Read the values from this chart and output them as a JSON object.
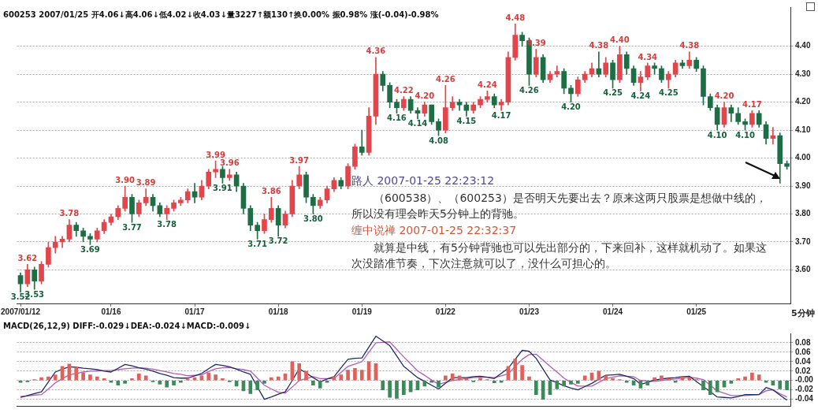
{
  "chart_data": [
    {
      "type": "candlestick",
      "title": "600253 2007/01/25 开4.06↓高4.06↓低4.02↓收4.03↓量3227↑额130↑换0.00% 振0.98% 涨(-0.04)-0.98%",
      "categories": [
        "2007/01/12",
        null,
        null,
        null,
        null,
        null,
        null,
        null,
        null,
        null,
        null,
        null,
        null,
        "01/16",
        null,
        null,
        null,
        null,
        null,
        null,
        null,
        null,
        null,
        null,
        null,
        "01/17",
        null,
        null,
        null,
        null,
        null,
        null,
        null,
        null,
        null,
        null,
        null,
        "01/18",
        null,
        null,
        null,
        null,
        null,
        null,
        null,
        null,
        null,
        null,
        null,
        "01/19",
        null,
        null,
        null,
        null,
        null,
        null,
        null,
        null,
        null,
        null,
        null,
        "01/22",
        null,
        null,
        null,
        null,
        null,
        null,
        null,
        null,
        null,
        null,
        null,
        "01/23",
        null,
        null,
        null,
        null,
        null,
        null,
        null,
        null,
        null,
        null,
        null,
        "01/24",
        null,
        null,
        null,
        null,
        null,
        null,
        null,
        null,
        null,
        null,
        null,
        "01/25",
        null,
        null,
        null,
        null,
        null,
        null,
        null,
        null,
        null,
        null,
        null,
        null,
        null
      ],
      "ohlc": [
        [
          3.58,
          3.59,
          3.52,
          3.55
        ],
        [
          3.55,
          3.62,
          3.54,
          3.6
        ],
        [
          3.6,
          3.61,
          3.53,
          3.56
        ],
        [
          3.56,
          3.63,
          3.55,
          3.62
        ],
        [
          3.62,
          3.7,
          3.61,
          3.68
        ],
        [
          3.68,
          3.72,
          3.66,
          3.7
        ],
        [
          3.7,
          3.72,
          3.68,
          3.71
        ],
        [
          3.71,
          3.78,
          3.7,
          3.76
        ],
        [
          3.76,
          3.77,
          3.72,
          3.74
        ],
        [
          3.74,
          3.75,
          3.7,
          3.72
        ],
        [
          3.72,
          3.73,
          3.69,
          3.71
        ],
        [
          3.71,
          3.75,
          3.7,
          3.74
        ],
        [
          3.74,
          3.78,
          3.73,
          3.77
        ],
        [
          3.77,
          3.8,
          3.76,
          3.79
        ],
        [
          3.79,
          3.83,
          3.78,
          3.82
        ],
        [
          3.82,
          3.9,
          3.81,
          3.86
        ],
        [
          3.86,
          3.87,
          3.77,
          3.8
        ],
        [
          3.8,
          3.85,
          3.79,
          3.84
        ],
        [
          3.84,
          3.89,
          3.83,
          3.86
        ],
        [
          3.86,
          3.87,
          3.81,
          3.83
        ],
        [
          3.83,
          3.84,
          3.79,
          3.8
        ],
        [
          3.8,
          3.83,
          3.78,
          3.82
        ],
        [
          3.82,
          3.85,
          3.81,
          3.84
        ],
        [
          3.84,
          3.86,
          3.83,
          3.85
        ],
        [
          3.85,
          3.89,
          3.84,
          3.88
        ],
        [
          3.88,
          3.91,
          3.84,
          3.86
        ],
        [
          3.86,
          3.92,
          3.85,
          3.9
        ],
        [
          3.9,
          3.96,
          3.89,
          3.95
        ],
        [
          3.95,
          3.99,
          3.93,
          3.96
        ],
        [
          3.96,
          3.97,
          3.91,
          3.93
        ],
        [
          3.93,
          3.96,
          3.92,
          3.94
        ],
        [
          3.94,
          3.95,
          3.88,
          3.9
        ],
        [
          3.9,
          3.91,
          3.8,
          3.82
        ],
        [
          3.82,
          3.83,
          3.74,
          3.76
        ],
        [
          3.76,
          3.77,
          3.71,
          3.74
        ],
        [
          3.74,
          3.8,
          3.73,
          3.78
        ],
        [
          3.78,
          3.86,
          3.77,
          3.82
        ],
        [
          3.82,
          3.83,
          3.72,
          3.76
        ],
        [
          3.76,
          3.81,
          3.75,
          3.8
        ],
        [
          3.8,
          3.92,
          3.79,
          3.9
        ],
        [
          3.9,
          3.97,
          3.89,
          3.94
        ],
        [
          3.94,
          3.95,
          3.84,
          3.86
        ],
        [
          3.86,
          3.87,
          3.8,
          3.83
        ],
        [
          3.83,
          3.86,
          3.82,
          3.85
        ],
        [
          3.85,
          3.9,
          3.84,
          3.89
        ],
        [
          3.89,
          3.93,
          3.88,
          3.92
        ],
        [
          3.92,
          3.93,
          3.89,
          3.9
        ],
        [
          3.9,
          3.98,
          3.89,
          3.97
        ],
        [
          3.97,
          4.05,
          3.96,
          4.04
        ],
        [
          4.04,
          4.1,
          4.01,
          4.02
        ],
        [
          4.02,
          4.18,
          4.01,
          4.15
        ],
        [
          4.15,
          4.36,
          4.12,
          4.3
        ],
        [
          4.3,
          4.31,
          4.24,
          4.26
        ],
        [
          4.26,
          4.27,
          4.18,
          4.2
        ],
        [
          4.2,
          4.21,
          4.16,
          4.18
        ],
        [
          4.18,
          4.22,
          4.17,
          4.21
        ],
        [
          4.21,
          4.22,
          4.16,
          4.17
        ],
        [
          4.17,
          4.18,
          4.14,
          4.16
        ],
        [
          4.16,
          4.2,
          4.15,
          4.19
        ],
        [
          4.19,
          4.19,
          4.12,
          4.13
        ],
        [
          4.13,
          4.14,
          4.08,
          4.1
        ],
        [
          4.1,
          4.26,
          4.09,
          4.18
        ],
        [
          4.18,
          4.22,
          4.17,
          4.2
        ],
        [
          4.2,
          4.21,
          4.17,
          4.19
        ],
        [
          4.19,
          4.2,
          4.15,
          4.17
        ],
        [
          4.17,
          4.2,
          4.16,
          4.19
        ],
        [
          4.19,
          4.22,
          4.18,
          4.21
        ],
        [
          4.21,
          4.24,
          4.2,
          4.22
        ],
        [
          4.22,
          4.23,
          4.18,
          4.19
        ],
        [
          4.19,
          4.21,
          4.17,
          4.2
        ],
        [
          4.2,
          4.38,
          4.19,
          4.36
        ],
        [
          4.36,
          4.48,
          4.35,
          4.44
        ],
        [
          4.44,
          4.45,
          4.4,
          4.42
        ],
        [
          4.42,
          4.43,
          4.26,
          4.3
        ],
        [
          4.3,
          4.39,
          4.29,
          4.36
        ],
        [
          4.36,
          4.37,
          4.27,
          4.28
        ],
        [
          4.28,
          4.31,
          4.27,
          4.3
        ],
        [
          4.3,
          4.33,
          4.29,
          4.31
        ],
        [
          4.31,
          4.32,
          4.23,
          4.25
        ],
        [
          4.25,
          4.26,
          4.2,
          4.23
        ],
        [
          4.23,
          4.29,
          4.22,
          4.28
        ],
        [
          4.28,
          4.31,
          4.27,
          4.3
        ],
        [
          4.3,
          4.34,
          4.29,
          4.32
        ],
        [
          4.32,
          4.38,
          4.29,
          4.3
        ],
        [
          4.3,
          4.36,
          4.29,
          4.34
        ],
        [
          4.34,
          4.35,
          4.25,
          4.28
        ],
        [
          4.28,
          4.4,
          4.27,
          4.37
        ],
        [
          4.37,
          4.38,
          4.3,
          4.32
        ],
        [
          4.32,
          4.33,
          4.26,
          4.27
        ],
        [
          4.27,
          4.31,
          4.24,
          4.29
        ],
        [
          4.29,
          4.34,
          4.28,
          4.33
        ],
        [
          4.33,
          4.34,
          4.3,
          4.32
        ],
        [
          4.32,
          4.33,
          4.27,
          4.28
        ],
        [
          4.28,
          4.31,
          4.25,
          4.3
        ],
        [
          4.3,
          4.35,
          4.29,
          4.34
        ],
        [
          4.34,
          4.35,
          4.32,
          4.33
        ],
        [
          4.33,
          4.38,
          4.32,
          4.35
        ],
        [
          4.35,
          4.36,
          4.31,
          4.32
        ],
        [
          4.32,
          4.33,
          4.19,
          4.22
        ],
        [
          4.22,
          4.23,
          4.17,
          4.18
        ],
        [
          4.18,
          4.19,
          4.1,
          4.12
        ],
        [
          4.12,
          4.2,
          4.11,
          4.18
        ],
        [
          4.18,
          4.19,
          4.13,
          4.16
        ],
        [
          4.16,
          4.18,
          4.12,
          4.13
        ],
        [
          4.13,
          4.14,
          4.1,
          4.12
        ],
        [
          4.12,
          4.17,
          4.11,
          4.16
        ],
        [
          4.16,
          4.17,
          4.11,
          4.12
        ],
        [
          4.12,
          4.13,
          4.05,
          4.07
        ],
        [
          4.07,
          4.11,
          4.05,
          4.08
        ],
        [
          4.08,
          4.09,
          3.91,
          3.98
        ],
        [
          3.98,
          3.99,
          3.96,
          3.97
        ]
      ],
      "colors": [
        "#1d6e45",
        "#e0464b",
        "#1d6e45",
        "#e0464b",
        "#e0464b",
        "#e0464b",
        "#e0464b",
        "#e0464b",
        "#1d6e45",
        "#1d6e45",
        "#1d6e45",
        "#e0464b",
        "#e0464b",
        "#e0464b",
        "#e0464b",
        "#e0464b",
        "#1d6e45",
        "#e0464b",
        "#e0464b",
        "#1d6e45",
        "#1d6e45",
        "#e0464b",
        "#e0464b",
        "#e0464b",
        "#e0464b",
        "#1d6e45",
        "#e0464b",
        "#e0464b",
        "#e0464b",
        "#1d6e45",
        "#e0464b",
        "#1d6e45",
        "#1d6e45",
        "#1d6e45",
        "#1d6e45",
        "#e0464b",
        "#e0464b",
        "#1d6e45",
        "#e0464b",
        "#e0464b",
        "#e0464b",
        "#1d6e45",
        "#1d6e45",
        "#e0464b",
        "#e0464b",
        "#e0464b",
        "#1d6e45",
        "#e0464b",
        "#e0464b",
        "#1d6e45",
        "#e0464b",
        "#e0464b",
        "#1d6e45",
        "#1d6e45",
        "#1d6e45",
        "#e0464b",
        "#1d6e45",
        "#1d6e45",
        "#e0464b",
        "#1d6e45",
        "#1d6e45",
        "#e0464b",
        "#e0464b",
        "#1d6e45",
        "#1d6e45",
        "#e0464b",
        "#e0464b",
        "#e0464b",
        "#1d6e45",
        "#e0464b",
        "#e0464b",
        "#e0464b",
        "#1d6e45",
        "#1d6e45",
        "#e0464b",
        "#1d6e45",
        "#e0464b",
        "#e0464b",
        "#1d6e45",
        "#1d6e45",
        "#e0464b",
        "#e0464b",
        "#e0464b",
        "#1d6e45",
        "#e0464b",
        "#1d6e45",
        "#e0464b",
        "#1d6e45",
        "#1d6e45",
        "#e0464b",
        "#e0464b",
        "#1d6e45",
        "#1d6e45",
        "#e0464b",
        "#e0464b",
        "#1d6e45",
        "#e0464b",
        "#1d6e45",
        "#1d6e45",
        "#1d6e45",
        "#1d6e45",
        "#e0464b",
        "#1d6e45",
        "#1d6e45",
        "#1d6e45",
        "#e0464b",
        "#1d6e45",
        "#1d6e45",
        "#e0464b",
        "#1d6e45",
        "#1d6e45"
      ],
      "ylim": [
        3.48,
        4.54
      ],
      "yticks": [
        {
          "value": 3.6,
          "label": "3.60"
        },
        {
          "value": 3.7,
          "label": "3.70"
        },
        {
          "value": 3.8,
          "label": "3.80"
        },
        {
          "value": 3.9,
          "label": "3.90"
        },
        {
          "value": 4.0,
          "label": "4.00"
        },
        {
          "value": 4.1,
          "label": "4.10"
        },
        {
          "value": 4.2,
          "label": "4.20"
        },
        {
          "value": 4.3,
          "label": "4.30"
        },
        {
          "value": 4.4,
          "label": "4.40"
        }
      ],
      "grid": "y",
      "annotations": [
        "路人 2007-01-25 22:23:12",
        "（600538）、（600253）是否明天先要出去？原来这两只股票是想做中线的，所以没有理会昨天5分钟上的背驰。",
        "缠中说禅 2007-01-25 22:32:37",
        "就算是中线，有5分钟背驰也可以先出部分的，下来回补，这样就机动了。如果这次没踏准节奏，下次注意就可以了，没什么可担心的。",
        "5分钟",
        {
          "text": "3.52",
          "y": 3.52
        },
        {
          "text": "3.62",
          "y": 3.62
        },
        {
          "text": "3.53",
          "y": 3.53
        },
        {
          "text": "3.78",
          "y": 3.78
        },
        {
          "text": "3.69",
          "y": 3.69
        },
        {
          "text": "3.90",
          "y": 3.9
        },
        {
          "text": "3.77",
          "y": 3.77
        },
        {
          "text": "3.89",
          "y": 3.89
        },
        {
          "text": "3.78",
          "y": 3.78
        },
        {
          "text": "3.99",
          "y": 3.99
        },
        {
          "text": "3.91",
          "y": 3.91
        },
        {
          "text": "3.96",
          "y": 3.96
        },
        {
          "text": "3.71",
          "y": 3.71
        },
        {
          "text": "3.86",
          "y": 3.86
        },
        {
          "text": "3.72",
          "y": 3.72
        },
        {
          "text": "3.97",
          "y": 3.97
        },
        {
          "text": "3.80",
          "y": 3.8
        },
        {
          "text": "4.36",
          "y": 4.36
        },
        {
          "text": "4.16",
          "y": 4.16
        },
        {
          "text": "4.22",
          "y": 4.22
        },
        {
          "text": "4.14",
          "y": 4.14
        },
        {
          "text": "4.20",
          "y": 4.2
        },
        {
          "text": "4.08",
          "y": 4.08
        },
        {
          "text": "4.26",
          "y": 4.26
        },
        {
          "text": "4.15",
          "y": 4.15
        },
        {
          "text": "4.24",
          "y": 4.24
        },
        {
          "text": "4.17",
          "y": 4.17
        },
        {
          "text": "4.48",
          "y": 4.48
        },
        {
          "text": "4.26",
          "y": 4.26
        },
        {
          "text": "4.39",
          "y": 4.39
        },
        {
          "text": "4.20",
          "y": 4.2
        },
        {
          "text": "4.38",
          "y": 4.38
        },
        {
          "text": "4.25",
          "y": 4.25
        },
        {
          "text": "4.40",
          "y": 4.4
        },
        {
          "text": "4.24",
          "y": 4.24
        },
        {
          "text": "4.34",
          "y": 4.34
        },
        {
          "text": "4.25",
          "y": 4.25
        },
        {
          "text": "4.38",
          "y": 4.38
        },
        {
          "text": "4.10",
          "y": 4.1
        },
        {
          "text": "4.20",
          "y": 4.2
        },
        {
          "text": "4.10",
          "y": 4.1
        },
        {
          "text": "4.17",
          "y": 4.17
        }
      ]
    },
    {
      "type": "bar",
      "title": "MACD(26,12,9) DIFF:-0.029↓DEA:-0.024↓MACD:-0.009↓",
      "categories": [
        null,
        null,
        null,
        null,
        null,
        null,
        null,
        null,
        null,
        null,
        null,
        null,
        null,
        null,
        null,
        null,
        null,
        null,
        null,
        null,
        null,
        null,
        null,
        null,
        null,
        null,
        null,
        null,
        null,
        null,
        null,
        null,
        null,
        null,
        null,
        null,
        null,
        null,
        null,
        null,
        null,
        null,
        null,
        null,
        null,
        null,
        null,
        null,
        null,
        null,
        null,
        null,
        null,
        null,
        null,
        null,
        null,
        null,
        null,
        null,
        null,
        null,
        null,
        null,
        null,
        null,
        null,
        null,
        null,
        null,
        null,
        null,
        null,
        null,
        null,
        null,
        null,
        null,
        null,
        null,
        null,
        null,
        null,
        null,
        null,
        null,
        null,
        null,
        null,
        null,
        null,
        null,
        null,
        null,
        null,
        null,
        null,
        null,
        null,
        null,
        null,
        null,
        null,
        null,
        null,
        null,
        null,
        null,
        null,
        null,
        null
      ],
      "series": [
        {
          "values": [
            -0.004,
            -0.003,
            0.002,
            0.006,
            0.008,
            0.012,
            0.03,
            0.035,
            0.028,
            0.016,
            0.012,
            0.008,
            0.004,
            -0.004,
            -0.01,
            -0.006,
            0.004,
            0.014,
            0.01,
            -0.003,
            -0.008,
            -0.014,
            -0.01,
            -0.004,
            0.003,
            0.006,
            0.01,
            0.016,
            0.012,
            0.004,
            -0.003,
            -0.012,
            -0.022,
            -0.028,
            -0.02,
            -0.006,
            0.006,
            0.008,
            0.014,
            0.04,
            0.036,
            0.02,
            -0.01,
            -0.016,
            -0.004,
            0.008,
            0.012,
            0.022,
            0.026,
            0.022,
            0.04,
            0.036,
            -0.02,
            -0.036,
            -0.038,
            -0.03,
            -0.024,
            -0.02,
            -0.012,
            -0.004,
            -0.014,
            0.01,
            0.014,
            0.01,
            0.004,
            -0.003,
            0.005,
            0.002,
            -0.005,
            -0.004,
            0.03,
            0.046,
            0.032,
            0.008,
            -0.03,
            -0.04,
            -0.03,
            -0.018,
            -0.012,
            -0.008,
            -0.006,
            0.01,
            0.016,
            0.02,
            0.01,
            0.004,
            0.002,
            -0.004,
            -0.01,
            -0.016,
            -0.01,
            0.006,
            0.01,
            0.004,
            -0.004,
            0.008,
            0.006,
            0.002,
            -0.02,
            -0.03,
            -0.024,
            -0.014,
            -0.006,
            0.004,
            0.008,
            0.016,
            0.012,
            -0.004,
            -0.01,
            -0.018,
            -0.02
          ],
          "colors": [
            "#3a8a5a",
            "#3a8a5a",
            "#e0605a",
            "#e0605a",
            "#e0605a",
            "#e0605a",
            "#e0605a",
            "#e0605a",
            "#e0605a",
            "#e0605a",
            "#e0605a",
            "#e0605a",
            "#e0605a",
            "#3a8a5a",
            "#3a8a5a",
            "#3a8a5a",
            "#e0605a",
            "#e0605a",
            "#e0605a",
            "#3a8a5a",
            "#3a8a5a",
            "#3a8a5a",
            "#3a8a5a",
            "#3a8a5a",
            "#e0605a",
            "#e0605a",
            "#e0605a",
            "#e0605a",
            "#e0605a",
            "#e0605a",
            "#3a8a5a",
            "#3a8a5a",
            "#3a8a5a",
            "#3a8a5a",
            "#3a8a5a",
            "#3a8a5a",
            "#e0605a",
            "#e0605a",
            "#e0605a",
            "#e0605a",
            "#e0605a",
            "#e0605a",
            "#3a8a5a",
            "#3a8a5a",
            "#3a8a5a",
            "#e0605a",
            "#e0605a",
            "#e0605a",
            "#e0605a",
            "#e0605a",
            "#e0605a",
            "#e0605a",
            "#3a8a5a",
            "#3a8a5a",
            "#3a8a5a",
            "#3a8a5a",
            "#3a8a5a",
            "#3a8a5a",
            "#3a8a5a",
            "#3a8a5a",
            "#3a8a5a",
            "#e0605a",
            "#e0605a",
            "#e0605a",
            "#e0605a",
            "#3a8a5a",
            "#e0605a",
            "#e0605a",
            "#3a8a5a",
            "#3a8a5a",
            "#e0605a",
            "#e0605a",
            "#e0605a",
            "#e0605a",
            "#3a8a5a",
            "#3a8a5a",
            "#3a8a5a",
            "#3a8a5a",
            "#3a8a5a",
            "#3a8a5a",
            "#3a8a5a",
            "#e0605a",
            "#e0605a",
            "#e0605a",
            "#e0605a",
            "#e0605a",
            "#e0605a",
            "#3a8a5a",
            "#3a8a5a",
            "#3a8a5a",
            "#3a8a5a",
            "#e0605a",
            "#e0605a",
            "#e0605a",
            "#3a8a5a",
            "#e0605a",
            "#e0605a",
            "#e0605a",
            "#3a8a5a",
            "#3a8a5a",
            "#3a8a5a",
            "#3a8a5a",
            "#3a8a5a",
            "#e0605a",
            "#e0605a",
            "#e0605a",
            "#e0605a",
            "#3a8a5a",
            "#3a8a5a",
            "#3a8a5a",
            "#3a8a5a"
          ]
        },
        {
          "type": "line",
          "color": "#1f2a6b",
          "values": [
            -0.036,
            -0.032,
            -0.028,
            -0.024,
            -0.003,
            0.018,
            0.024,
            0.029,
            0.028,
            0.026,
            0.025,
            0.023,
            0.02,
            0.018,
            0.026,
            0.034,
            0.031,
            0.027,
            0.024,
            0.02,
            0.015,
            0.011,
            0.006,
            0.005,
            0.005,
            0.01,
            0.015,
            0.025,
            0.034,
            0.032,
            0.029,
            0.024,
            0.018,
            0.013,
            -0.014,
            -0.04,
            -0.035,
            -0.029,
            -0.024,
            0.0,
            0.025,
            0.016,
            0.006,
            -0.003,
            0.003,
            0.008,
            0.027,
            0.045,
            0.047,
            0.048,
            0.071,
            0.094,
            0.084,
            0.074,
            0.052,
            0.03,
            0.018,
            0.006,
            -0.002,
            -0.01,
            -0.018,
            -0.006,
            0.006,
            0.006,
            0.006,
            0.008,
            0.009,
            0.007,
            0.004,
            0.015,
            0.026,
            0.045,
            0.064,
            0.062,
            0.047,
            0.024,
            0.001,
            -0.005,
            -0.011,
            -0.016,
            -0.02,
            -0.013,
            -0.006,
            0.003,
            0.011,
            0.012,
            0.013,
            0.009,
            0.004,
            -0.008,
            -0.004,
            0.001,
            0.003,
            0.005,
            0.006,
            0.008,
            0.009,
            -0.002,
            -0.013,
            -0.024,
            -0.035,
            -0.036,
            -0.037,
            -0.034,
            -0.03,
            -0.03,
            -0.03,
            -0.015,
            -0.02,
            -0.031,
            -0.042
          ]
        },
        {
          "type": "line",
          "color": "#b45cb4",
          "values": [
            -0.034,
            -0.033,
            -0.031,
            -0.03,
            -0.018,
            -0.005,
            0.004,
            0.012,
            0.015,
            0.018,
            0.02,
            0.02,
            0.021,
            0.021,
            0.023,
            0.025,
            0.026,
            0.027,
            0.026,
            0.024,
            0.021,
            0.018,
            0.015,
            0.013,
            0.01,
            0.011,
            0.012,
            0.019,
            0.025,
            0.027,
            0.028,
            0.025,
            0.023,
            0.02,
            0.005,
            -0.01,
            -0.018,
            -0.025,
            -0.027,
            -0.014,
            0.0,
            0.004,
            0.008,
            0.004,
            0.004,
            0.004,
            0.017,
            0.03,
            0.035,
            0.04,
            0.06,
            0.08,
            0.081,
            0.082,
            0.066,
            0.05,
            0.035,
            0.02,
            0.011,
            0.001,
            -0.008,
            -0.004,
            0.0,
            0.002,
            0.004,
            0.006,
            0.007,
            0.007,
            0.006,
            0.01,
            0.014,
            0.03,
            0.045,
            0.055,
            0.056,
            0.043,
            0.03,
            0.018,
            0.005,
            -0.004,
            -0.012,
            -0.012,
            -0.012,
            -0.004,
            0.004,
            0.007,
            0.01,
            0.009,
            0.008,
            0.0,
            -0.001,
            -0.002,
            0.0,
            0.002,
            0.003,
            0.005,
            0.007,
            0.005,
            0.002,
            -0.01,
            -0.022,
            -0.027,
            -0.032,
            -0.032,
            -0.032,
            -0.031,
            -0.03,
            -0.022,
            -0.02,
            -0.028,
            -0.035
          ]
        }
      ],
      "ylim": [
        -0.054,
        0.1
      ],
      "yticks": [
        0.08,
        0.06,
        0.04,
        0.02,
        {
          "value": 0,
          "label": "-0.00"
        },
        -0.02,
        -0.04
      ],
      "grid": "y",
      "tick_labels": "y",
      "marker": "none"
    }
  ]
}
